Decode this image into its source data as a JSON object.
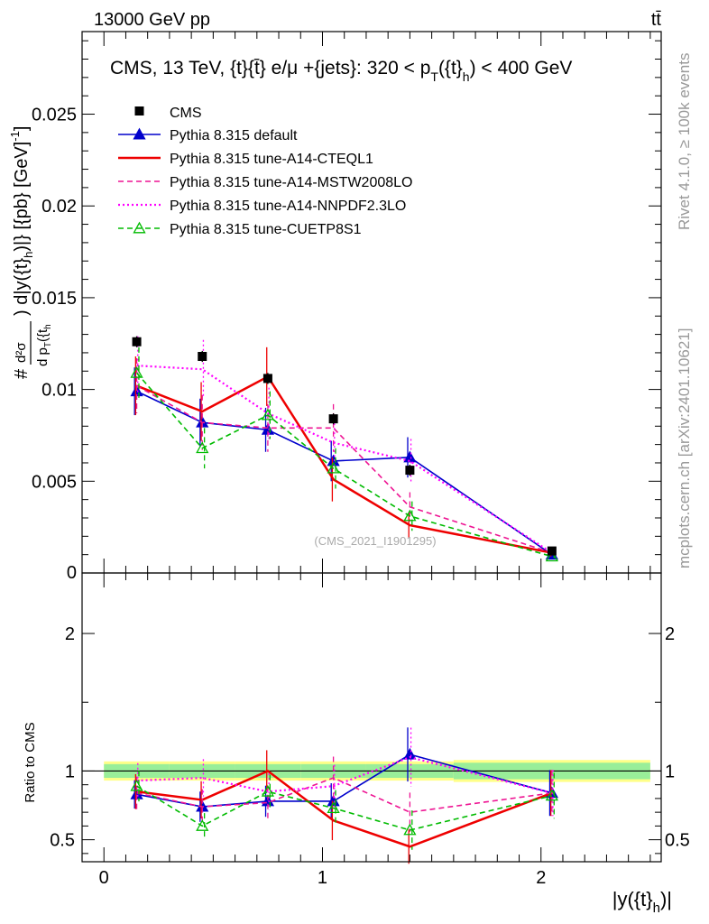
{
  "header": {
    "left": "13000 GeV pp",
    "right": "tt̄"
  },
  "side_labels": {
    "top": "Rivet 4.1.0, ≥ 100k events",
    "bottom": "mcplots.cern.ch [arXiv:2401.10621]"
  },
  "watermark": "(CMS_2021_I1901295)",
  "chart_data": {
    "type": "line",
    "title": "CMS, 13 TeV, {t}{t̄} e/μ +{jets}: 320 <  p_T({t}_h) < 400 GeV",
    "title_parts": {
      "main": "CMS, 13 TeV, {t}{t̄} e/μ +{jets}: 320 <  p",
      "sub1": "T",
      "mid": "({t}",
      "sub2": "h",
      "end": ") < 400 GeV"
    },
    "xlabel": "|y({t}_h)|",
    "xlabel_parts": {
      "main": "|y({t}",
      "sub": "h",
      "end": ")|"
    },
    "ylabel": "d²σ / (d p_T({t}_h) d|y({t}_h)|) [{pb} [GeV]⁻¹]",
    "ratio_ylabel": "Ratio to CMS",
    "xlim": [
      -0.1,
      2.55
    ],
    "ylim": [
      0,
      0.0295
    ],
    "ratio_ylim": [
      0.34,
      2.44
    ],
    "xticks": [
      0,
      1,
      2
    ],
    "xtick_labels": [
      "0",
      "1",
      "2"
    ],
    "yticks": [
      0.005,
      0.01,
      0.015,
      0.02,
      0.025
    ],
    "ytick_labels": [
      "0.005",
      "0.01",
      "0.015",
      "0.02",
      "0.025"
    ],
    "y_zero_label": "0",
    "ratio_yticks": [
      0.5,
      1,
      2
    ],
    "ratio_ytick_labels": [
      "0.5",
      "1",
      "2"
    ],
    "x": [
      0.15,
      0.45,
      0.75,
      1.05,
      1.4,
      2.05
    ],
    "x_edges": [
      0,
      0.3,
      0.6,
      0.9,
      1.2,
      1.6,
      2.5
    ],
    "data": {
      "name": "CMS",
      "values": [
        0.0126,
        0.0118,
        0.0106,
        0.0084,
        0.0056,
        0.0012
      ],
      "errors": [
        0.0003,
        0.0003,
        0.0003,
        0.0003,
        0.0003,
        0.0001
      ]
    },
    "ratio_band": {
      "inner": [
        0.05,
        0.05,
        0.05,
        0.05,
        0.05,
        0.06
      ],
      "outer": [
        0.07,
        0.07,
        0.07,
        0.07,
        0.07,
        0.08
      ]
    },
    "series": [
      {
        "name": "Pythia 8.315 default",
        "color": "#0000cc",
        "dash": "",
        "marker": "triangle-filled",
        "values": [
          0.0099,
          0.0082,
          0.0078,
          0.0061,
          0.0063,
          0.001
        ],
        "errors": [
          0.0013,
          0.0013,
          0.0012,
          0.0011,
          0.0011,
          0.0002
        ],
        "ratio": [
          0.83,
          0.74,
          0.78,
          0.78,
          1.12,
          0.84
        ]
      },
      {
        "name": "Pythia 8.315 tune-A14-CTEQL1",
        "color": "#ee0000",
        "dash": "",
        "marker": "none",
        "values": [
          0.0102,
          0.0088,
          0.0107,
          0.0051,
          0.0026,
          0.0011
        ],
        "errors": [
          0.0016,
          0.0016,
          0.0016,
          0.0012,
          0.0007,
          0.0002
        ],
        "ratio": [
          0.85,
          0.79,
          1.0,
          0.64,
          0.45,
          0.84
        ]
      },
      {
        "name": "Pythia 8.315 tune-A14-MSTW2008LO",
        "color": "#ee1493",
        "dash": "6,4",
        "marker": "none",
        "values": [
          0.0102,
          0.0082,
          0.0079,
          0.0079,
          0.0036,
          0.0011
        ],
        "errors": [
          0.0015,
          0.0015,
          0.0013,
          0.0013,
          0.0008,
          0.0002
        ],
        "ratio": [
          0.84,
          0.74,
          0.77,
          0.95,
          0.7,
          0.84
        ]
      },
      {
        "name": "Pythia 8.315 tune-A14-NNPDF2.3LO",
        "color": "#ff00ff",
        "dash": "2,3",
        "marker": "none",
        "values": [
          0.0113,
          0.0111,
          0.0087,
          0.0071,
          0.0061,
          0.0011
        ],
        "errors": [
          0.0016,
          0.0016,
          0.0014,
          0.0013,
          0.0012,
          0.0002
        ],
        "ratio": [
          0.93,
          0.95,
          0.85,
          0.89,
          1.1,
          0.84
        ]
      },
      {
        "name": "Pythia 8.315 tune-CUETP8S1",
        "color": "#00bb00",
        "dash": "6,4",
        "marker": "triangle-open",
        "values": [
          0.0109,
          0.0068,
          0.0086,
          0.0057,
          0.0031,
          0.0009
        ],
        "errors": [
          0.0014,
          0.0011,
          0.0013,
          0.0011,
          0.0008,
          0.0002
        ],
        "ratio": [
          0.89,
          0.6,
          0.85,
          0.73,
          0.57,
          0.82
        ]
      }
    ]
  }
}
